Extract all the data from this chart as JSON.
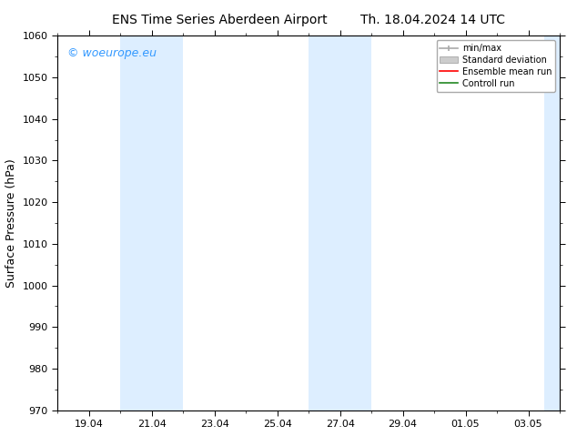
{
  "title_left": "ENS Time Series Aberdeen Airport",
  "title_right": "Th. 18.04.2024 14 UTC",
  "ylabel": "Surface Pressure (hPa)",
  "ylim": [
    970,
    1060
  ],
  "yticks": [
    970,
    980,
    990,
    1000,
    1010,
    1020,
    1030,
    1040,
    1050,
    1060
  ],
  "xtick_labels": [
    "19.04",
    "21.04",
    "23.04",
    "25.04",
    "27.04",
    "29.04",
    "01.05",
    "03.05"
  ],
  "xtick_positions": [
    1,
    3,
    5,
    7,
    9,
    11,
    13,
    15
  ],
  "x_min": 0,
  "x_max": 16,
  "shaded_bands": [
    {
      "x_start": 2,
      "x_end": 4
    },
    {
      "x_start": 8,
      "x_end": 10
    },
    {
      "x_start": 15.5,
      "x_end": 16
    }
  ],
  "shaded_color": "#ddeeff",
  "background_color": "#ffffff",
  "watermark_text": "© woeurope.eu",
  "watermark_color": "#3399ff",
  "legend_items": [
    {
      "label": "min/max",
      "color": "#aaaaaa",
      "type": "minmax"
    },
    {
      "label": "Standard deviation",
      "color": "#cccccc",
      "type": "stddev"
    },
    {
      "label": "Ensemble mean run",
      "color": "#ff0000",
      "type": "line"
    },
    {
      "label": "Controll run",
      "color": "#228822",
      "type": "line"
    }
  ],
  "axis_linecolor": "#000000",
  "tick_color": "#000000",
  "font_size_title": 10,
  "font_size_axis": 9,
  "font_size_ticks": 8,
  "font_size_watermark": 9,
  "font_size_legend": 7
}
